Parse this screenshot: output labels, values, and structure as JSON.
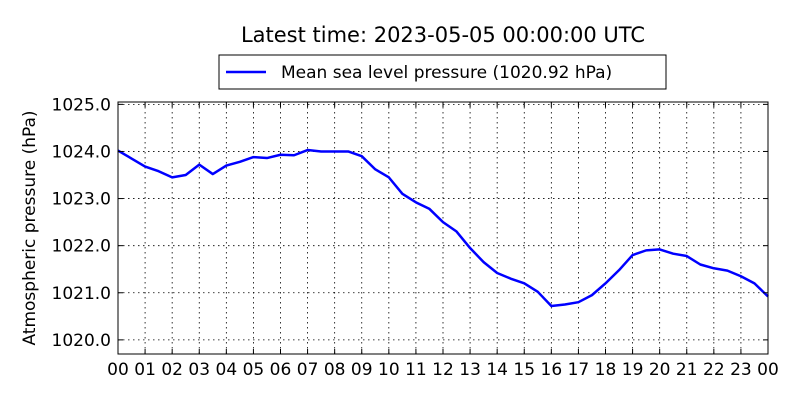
{
  "chart_data": {
    "type": "line",
    "title": "Latest time: 2023-05-05 00:00:00 UTC",
    "xlabel": "",
    "ylabel": "Atmospheric pressure (hPa)",
    "grid": true,
    "legend_position": "top-center",
    "xlim": [
      0,
      24
    ],
    "ylim": [
      1019.7,
      1025.05
    ],
    "x_ticks": [
      0,
      1,
      2,
      3,
      4,
      5,
      6,
      7,
      8,
      9,
      10,
      11,
      12,
      13,
      14,
      15,
      16,
      17,
      18,
      19,
      20,
      21,
      22,
      23,
      24
    ],
    "x_tick_labels": [
      "00",
      "01",
      "02",
      "03",
      "04",
      "05",
      "06",
      "07",
      "08",
      "09",
      "10",
      "11",
      "12",
      "13",
      "14",
      "15",
      "16",
      "17",
      "18",
      "19",
      "20",
      "21",
      "22",
      "23",
      "00"
    ],
    "y_ticks": [
      1020.0,
      1021.0,
      1022.0,
      1023.0,
      1024.0,
      1025.0
    ],
    "y_tick_labels": [
      "1020.0",
      "1021.0",
      "1022.0",
      "1023.0",
      "1024.0",
      "1025.0"
    ],
    "series": [
      {
        "name": "Mean sea level pressure (1020.92 hPa)",
        "color": "#0000ff",
        "x": [
          0,
          0.5,
          1.0,
          1.5,
          2.0,
          2.5,
          3.0,
          3.5,
          4.0,
          4.5,
          5.0,
          5.5,
          6.0,
          6.5,
          7.0,
          7.5,
          8.0,
          8.5,
          9.0,
          9.5,
          10.0,
          10.5,
          11.0,
          11.5,
          12.0,
          12.5,
          13.0,
          13.5,
          14.0,
          14.5,
          15.0,
          15.5,
          16.0,
          16.5,
          17.0,
          17.5,
          18.0,
          18.5,
          19.0,
          19.5,
          20.0,
          20.5,
          21.0,
          21.5,
          22.0,
          22.5,
          23.0,
          23.5,
          24.0
        ],
        "values": [
          1024.02,
          1023.85,
          1023.68,
          1023.58,
          1023.45,
          1023.5,
          1023.72,
          1023.52,
          1023.7,
          1023.78,
          1023.88,
          1023.86,
          1023.93,
          1023.92,
          1024.03,
          1024.0,
          1024.0,
          1024.0,
          1023.9,
          1023.62,
          1023.45,
          1023.1,
          1022.92,
          1022.78,
          1022.5,
          1022.3,
          1021.95,
          1021.65,
          1021.42,
          1021.3,
          1021.2,
          1021.02,
          1020.72,
          1020.75,
          1020.8,
          1020.95,
          1021.2,
          1021.48,
          1021.8,
          1021.9,
          1021.92,
          1021.83,
          1021.78,
          1021.6,
          1021.52,
          1021.47,
          1021.35,
          1021.2,
          1020.92
        ]
      }
    ]
  }
}
